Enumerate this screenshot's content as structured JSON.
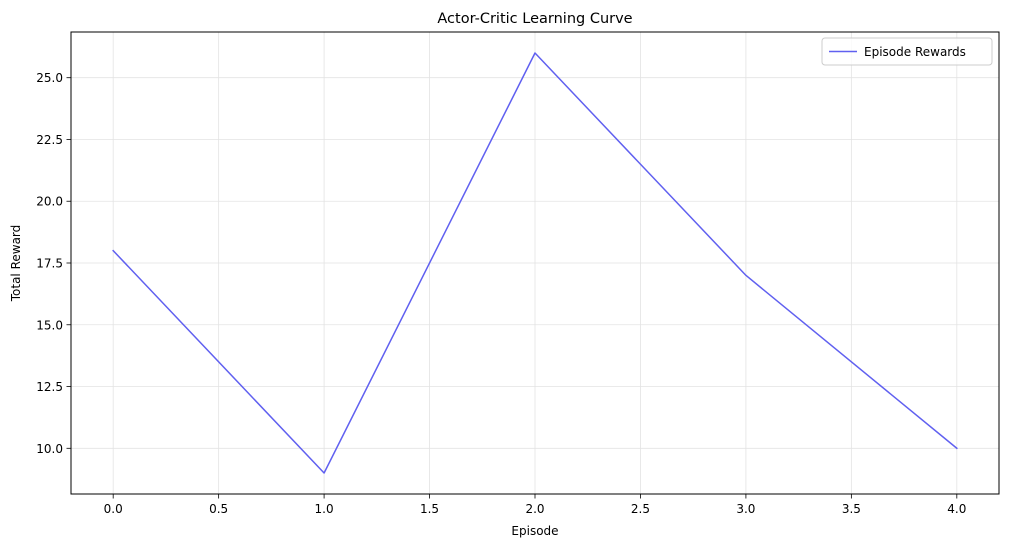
{
  "chart_data": {
    "type": "line",
    "title": "Actor-Critic Learning Curve",
    "xlabel": "Episode",
    "ylabel": "Total Reward",
    "x": [
      0,
      1,
      2,
      3,
      4
    ],
    "series": [
      {
        "name": "Episode Rewards",
        "values": [
          18,
          9,
          26,
          17,
          10
        ],
        "color": "#6060f0"
      }
    ],
    "xlim": [
      -0.2,
      4.2
    ],
    "ylim": [
      8.15,
      26.85
    ],
    "xticks": [
      0.0,
      0.5,
      1.0,
      1.5,
      2.0,
      2.5,
      3.0,
      3.5,
      4.0
    ],
    "xtick_labels": [
      "0.0",
      "0.5",
      "1.0",
      "1.5",
      "2.0",
      "2.5",
      "3.0",
      "3.5",
      "4.0"
    ],
    "yticks": [
      10.0,
      12.5,
      15.0,
      17.5,
      20.0,
      22.5,
      25.0
    ],
    "ytick_labels": [
      "10.0",
      "12.5",
      "15.0",
      "17.5",
      "20.0",
      "22.5",
      "25.0"
    ],
    "grid": true,
    "legend_position": "top-right"
  }
}
